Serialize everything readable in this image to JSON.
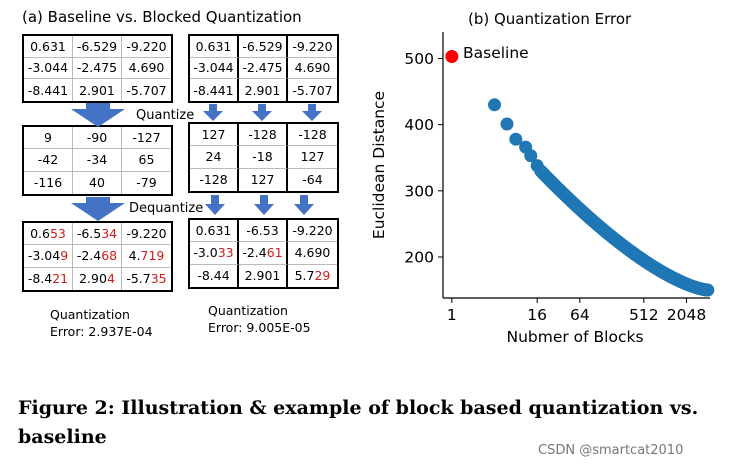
{
  "panel_a": {
    "title": "(a) Baseline vs. Blocked Quantization",
    "quantize_label": "Quantize",
    "dequantize_label": "Dequantize",
    "original_matrix": [
      [
        "0.631",
        "-6.529",
        "-9.220"
      ],
      [
        "-3.044",
        "-2.475",
        "4.690"
      ],
      [
        "-8.441",
        "2.901",
        "-5.707"
      ]
    ],
    "baseline_quantized": [
      [
        "9",
        "-90",
        "-127"
      ],
      [
        "-42",
        "-34",
        "65"
      ],
      [
        "-116",
        "40",
        "-79"
      ]
    ],
    "blocked_quantized": [
      [
        "127",
        "-128",
        "-128"
      ],
      [
        "24",
        "-18",
        "127"
      ],
      [
        "-128",
        "127",
        "-64"
      ]
    ],
    "baseline_dequantized": [
      [
        [
          "0.6",
          "53"
        ],
        [
          "-6.5",
          "34"
        ],
        [
          "-9.220",
          ""
        ]
      ],
      [
        [
          "-3.04",
          "9"
        ],
        [
          "-2.4",
          "68"
        ],
        [
          "4.",
          "719"
        ]
      ],
      [
        [
          "-8.4",
          "21"
        ],
        [
          "2.90",
          "4"
        ],
        [
          "-5.7",
          "35"
        ]
      ]
    ],
    "blocked_dequantized": [
      [
        [
          "0.631",
          ""
        ],
        [
          "-6.53",
          ""
        ],
        [
          "-9.220",
          ""
        ]
      ],
      [
        [
          "-3.0",
          "33"
        ],
        [
          "-2.4",
          "61"
        ],
        [
          "4.690",
          ""
        ]
      ],
      [
        [
          "-8.44",
          ""
        ],
        [
          "2.901",
          ""
        ],
        [
          "5.7",
          "29"
        ]
      ]
    ],
    "baseline_error": [
      "Quantization",
      "Error: 2.937E-04"
    ],
    "blocked_error": [
      "Quantization",
      "Error: 9.005E-05"
    ],
    "colors": {
      "arrow": "#4472c4",
      "highlight": "#d01c1c"
    }
  },
  "panel_b": {
    "title": "(b) Quantization Error",
    "baseline_label": "Baseline"
  },
  "chart_data": {
    "type": "scatter",
    "title": "(b) Quantization Error",
    "xlabel": "Nubmer of Blocks",
    "ylabel": "Euclidean Distance",
    "x_scale": "log2",
    "x_ticks": [
      "1",
      "16",
      "64",
      "512",
      "2048"
    ],
    "y_ticks": [
      200,
      300,
      400,
      500
    ],
    "ylim": [
      138,
      540
    ],
    "xlim": [
      0.75,
      4400
    ],
    "series": [
      {
        "name": "Baseline",
        "color": "#ff0000",
        "points": [
          [
            1,
            503
          ]
        ]
      },
      {
        "color": "#1f77b4",
        "points": [
          [
            4,
            430
          ],
          [
            6,
            401
          ],
          [
            8,
            378
          ],
          [
            11,
            366
          ],
          [
            13,
            353
          ],
          [
            16,
            338
          ]
        ],
        "curve": {
          "from_blocks": 18,
          "to_blocks": 4096,
          "start_distance": 330,
          "end_distance": 150
        }
      }
    ]
  },
  "caption": "Figure 2: Illustration & example of block based quantization vs. baseline",
  "watermark": "CSDN @smartcat2010"
}
